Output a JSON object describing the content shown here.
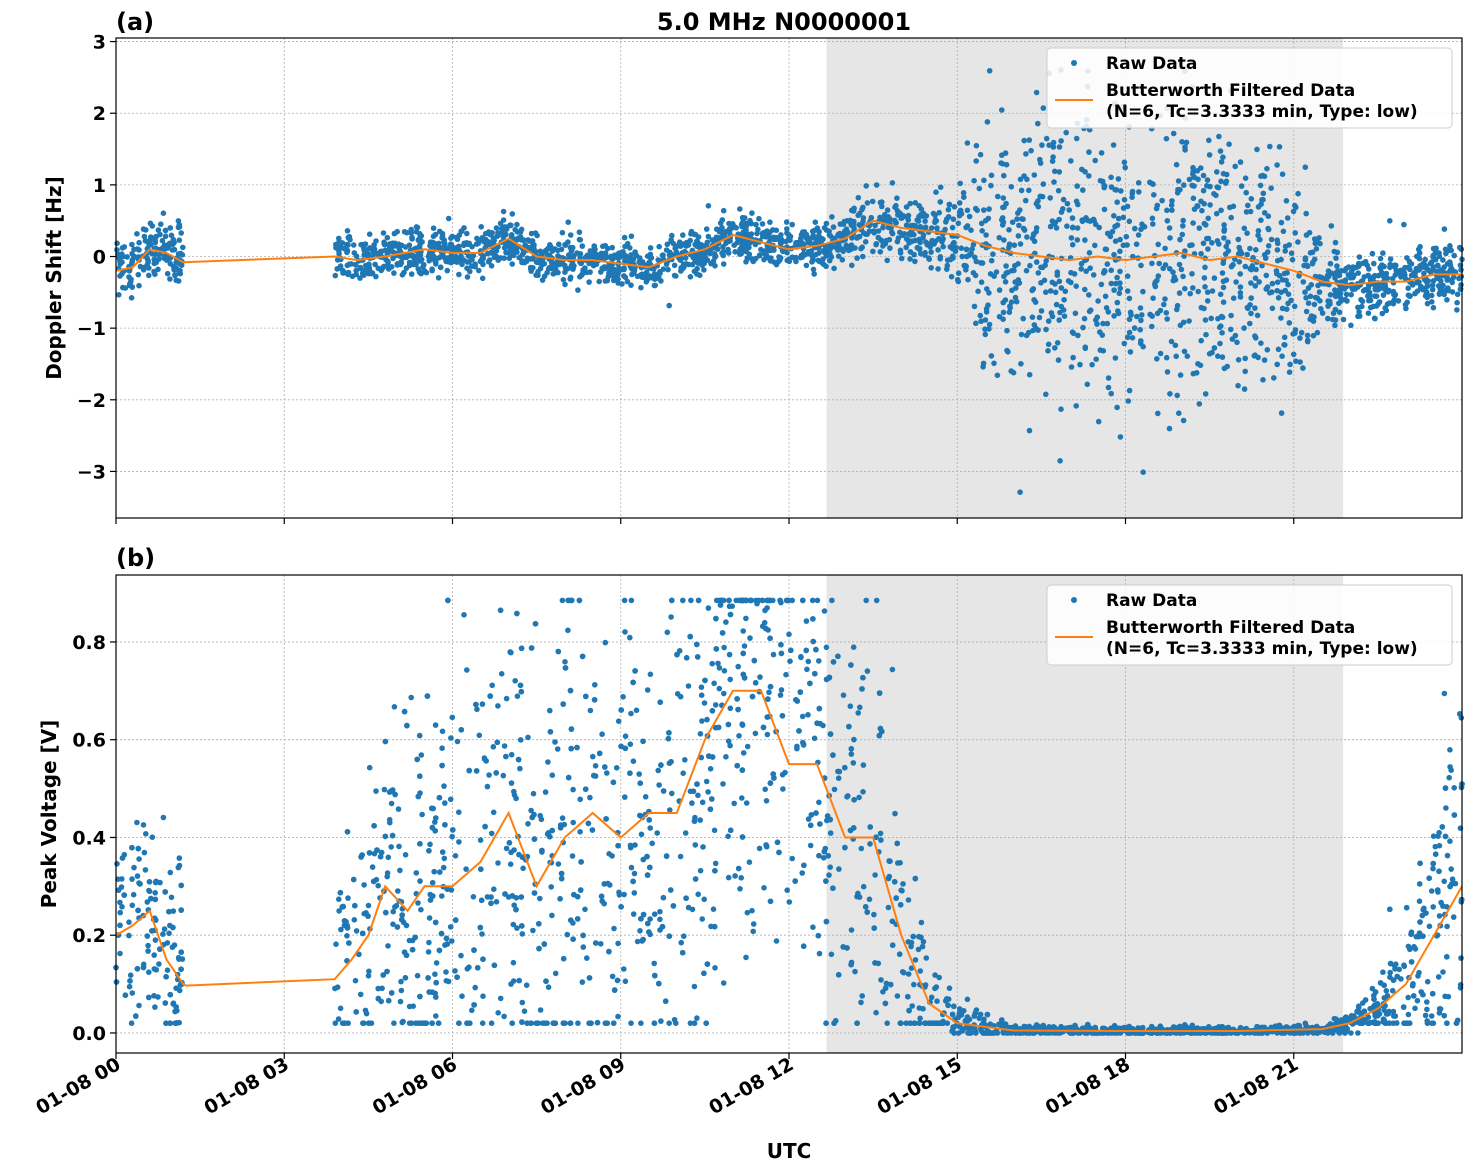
{
  "title": "5.0 MHz N0000001",
  "x_label": "UTC",
  "x_tick_labels": [
    "01-08 00",
    "01-08 03",
    "01-08 06",
    "01-08 09",
    "01-08 12",
    "01-08 15",
    "01-08 18",
    "01-08 21"
  ],
  "colors": {
    "raw": "#1f77b4",
    "filtered": "#ff7f0e",
    "shade": "#e6e6e6"
  },
  "legend": {
    "raw": "Raw Data",
    "filtered_line1": "Butterworth Filtered Data",
    "filtered_line2": "(N=6, Tc=3.3333 min, Type: low)",
    "placement": "upper-right"
  },
  "chart_data": [
    {
      "panel": "(a)",
      "type": "scatter+line",
      "ylabel": "Doppler Shift [Hz]",
      "xlim_hours": [
        0,
        24
      ],
      "ylim": [
        -3.65,
        3.05
      ],
      "y_ticks": [
        -3,
        -2,
        -1,
        0,
        1,
        2,
        3
      ],
      "y_tick_labels": [
        "−3",
        "−2",
        "−1",
        "0",
        "1",
        "2",
        "3"
      ],
      "grid": true,
      "shaded_interval_hours": [
        12.67,
        21.88
      ],
      "data_gap_hours": [
        1.2,
        3.9
      ],
      "filtered": {
        "t": [
          0,
          0.3,
          0.6,
          0.9,
          1.2,
          3.9,
          4.3,
          4.8,
          5.5,
          6.0,
          6.5,
          7.0,
          7.5,
          8.0,
          8.5,
          9.0,
          9.5,
          10.0,
          10.5,
          11.0,
          11.5,
          12.0,
          12.5,
          13.0,
          13.5,
          14.0,
          14.5,
          15.0,
          15.5,
          16.0,
          16.5,
          17.0,
          17.5,
          18.0,
          18.5,
          19.0,
          19.5,
          20.0,
          20.5,
          21.0,
          21.5,
          22.0,
          22.5,
          23.0,
          23.5,
          24.0
        ],
        "y": [
          -0.2,
          -0.15,
          0.1,
          0.05,
          -0.08,
          0.0,
          -0.05,
          0.0,
          0.1,
          0.05,
          0.05,
          0.25,
          0.0,
          -0.05,
          -0.05,
          -0.1,
          -0.15,
          0.0,
          0.1,
          0.3,
          0.2,
          0.1,
          0.15,
          0.25,
          0.5,
          0.4,
          0.35,
          0.3,
          0.15,
          0.05,
          0.0,
          -0.05,
          0.0,
          -0.05,
          0.0,
          0.05,
          -0.05,
          0.0,
          -0.1,
          -0.2,
          -0.35,
          -0.4,
          -0.35,
          -0.35,
          -0.25,
          -0.25
        ]
      },
      "raw_spread": {
        "t": [
          0,
          1.2,
          3.9,
          12.5,
          14.0,
          15.0,
          15.5,
          16.5,
          20.5,
          21.2,
          21.8,
          24.0
        ],
        "half_width": [
          0.2,
          0.2,
          0.15,
          0.15,
          0.2,
          0.25,
          0.8,
          1.0,
          1.0,
          0.6,
          0.25,
          0.2
        ]
      }
    },
    {
      "panel": "(b)",
      "type": "scatter+line",
      "ylabel": "Peak Voltage [V]",
      "xlim_hours": [
        0,
        24
      ],
      "ylim": [
        -0.041,
        0.937
      ],
      "y_ticks": [
        0,
        0.2,
        0.4,
        0.6,
        0.8
      ],
      "y_tick_labels": [
        "0.0",
        "0.2",
        "0.4",
        "0.6",
        "0.8"
      ],
      "grid": true,
      "shaded_interval_hours": [
        12.67,
        21.88
      ],
      "data_gap_hours": [
        1.2,
        3.9
      ],
      "filtered": {
        "t": [
          0,
          0.3,
          0.6,
          0.9,
          1.2,
          1.25,
          3.9,
          4.2,
          4.5,
          4.8,
          5.2,
          5.5,
          6.0,
          6.5,
          7.0,
          7.5,
          8.0,
          8.5,
          9.0,
          9.5,
          10.0,
          10.5,
          11.0,
          11.5,
          12.0,
          12.5,
          13.0,
          13.5,
          14.0,
          14.5,
          15.0,
          16.0,
          18.0,
          20.0,
          21.5,
          22.0,
          22.5,
          23.0,
          23.5,
          24.0
        ],
        "y": [
          0.2,
          0.22,
          0.25,
          0.15,
          0.1,
          0.097,
          0.11,
          0.15,
          0.2,
          0.3,
          0.25,
          0.3,
          0.3,
          0.35,
          0.45,
          0.3,
          0.4,
          0.45,
          0.4,
          0.45,
          0.45,
          0.6,
          0.7,
          0.7,
          0.55,
          0.55,
          0.4,
          0.4,
          0.2,
          0.06,
          0.02,
          0.005,
          0.004,
          0.004,
          0.008,
          0.02,
          0.05,
          0.1,
          0.2,
          0.3
        ]
      },
      "raw_spread": {
        "t": [
          0,
          1.2,
          3.9,
          5.0,
          7.0,
          10.0,
          12.5,
          13.5,
          14.3,
          15.0,
          16.0,
          21.5,
          22.5,
          23.5,
          24.0
        ],
        "half_width": [
          0.1,
          0.1,
          0.08,
          0.2,
          0.25,
          0.25,
          0.25,
          0.2,
          0.1,
          0.02,
          0.005,
          0.005,
          0.03,
          0.12,
          0.2
        ]
      }
    }
  ]
}
